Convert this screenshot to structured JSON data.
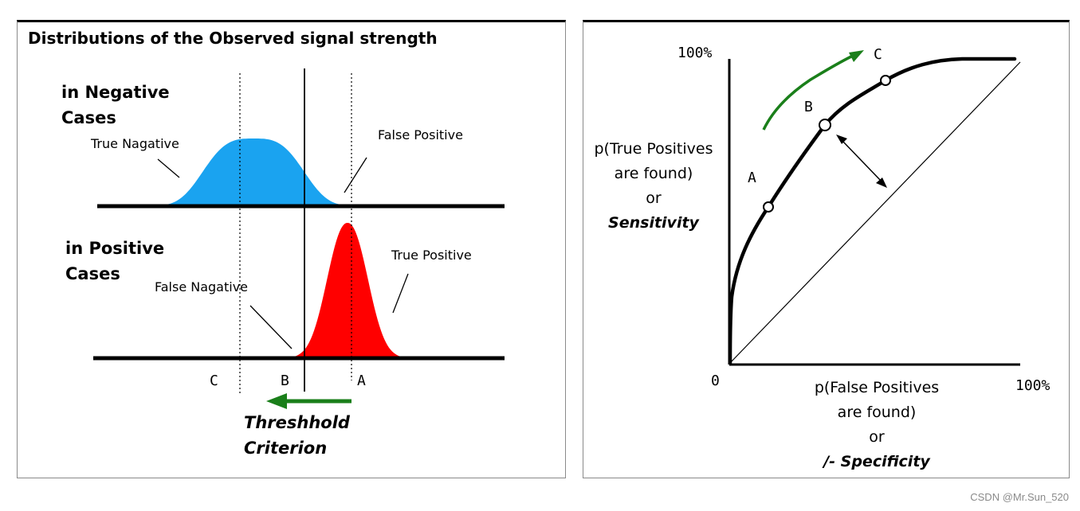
{
  "left": {
    "title": "Distributions of the Observed signal strength",
    "negative_heading": [
      "in Negative",
      "Cases"
    ],
    "positive_heading": [
      "in Positive",
      "Cases"
    ],
    "labels": {
      "true_negative": "True Nagative",
      "false_positive": "False Positive",
      "true_positive": "True Positive",
      "false_negative": "False Nagative"
    },
    "thresholds": [
      "C",
      "B",
      "A"
    ],
    "criterion": [
      "Threshhold",
      "Criterion"
    ],
    "colors": {
      "negative": "#1aa3f0",
      "positive": "#ff0000",
      "arrow": "#1a7f1a"
    }
  },
  "right": {
    "y_top": "100%",
    "origin": "0",
    "x_right": "100%",
    "points": [
      "A",
      "B",
      "C"
    ],
    "y_axis_label": [
      "p(True Positives",
      "are found)",
      "or",
      "Sensitivity"
    ],
    "x_axis_label": [
      "p(False Positives",
      "are found)",
      "or",
      "/- Specificity"
    ],
    "colors": {
      "arrow": "#1a7f1a"
    }
  },
  "watermark": "CSDN @Mr.Sun_520"
}
